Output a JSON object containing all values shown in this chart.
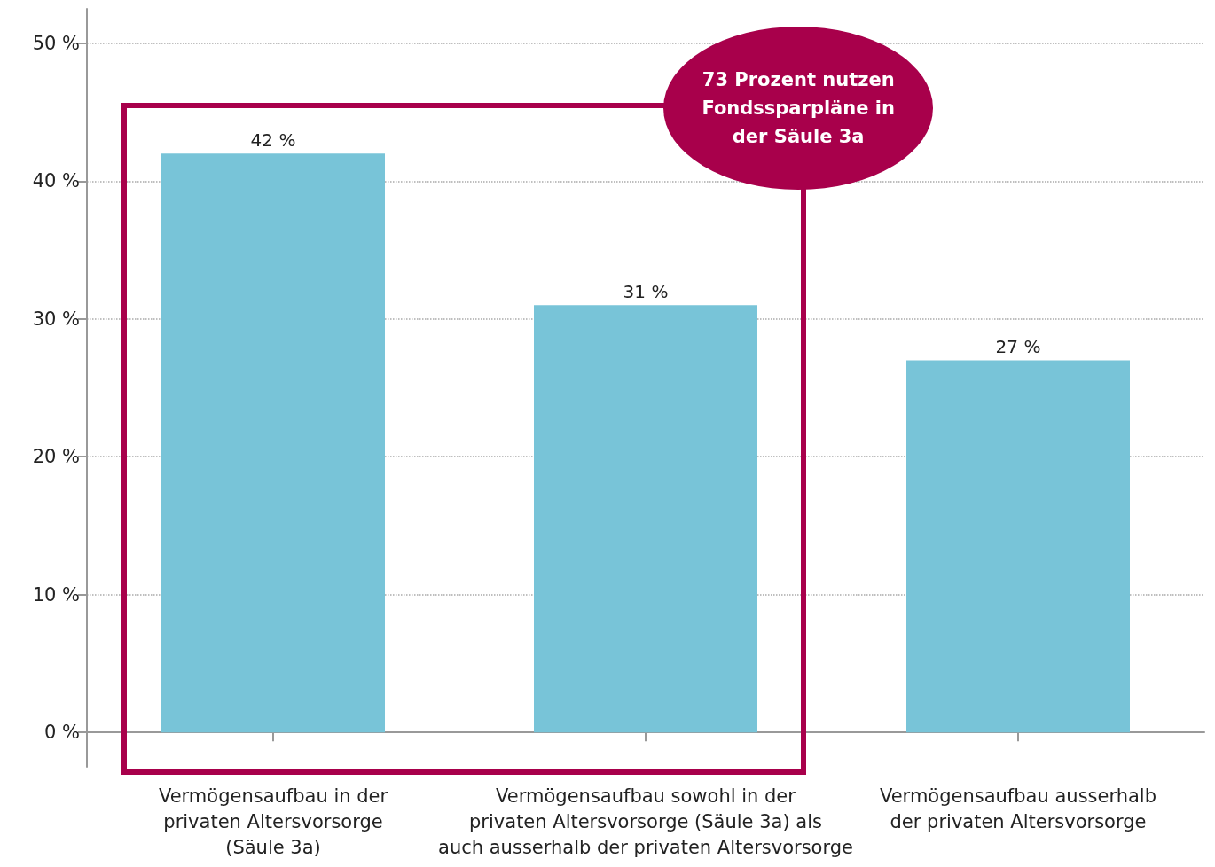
{
  "chart_data": {
    "type": "bar",
    "categories": [
      "Vermögensaufbau in der\nprivaten Altersvorsorge\n(Säule 3a)",
      "Vermögensaufbau sowohl in der\nprivaten Altersvorsorge (Säule 3a) als\nauch ausserhalb der privaten Altersvorsorge",
      "Vermögensaufbau ausserhalb\nder privaten Altersvorsorge"
    ],
    "values": [
      42,
      31,
      27
    ],
    "value_labels": [
      "42 %",
      "31 %",
      "27 %"
    ],
    "color": "#78c4d8",
    "ylim": [
      -2.5,
      52.5
    ],
    "yticks": [
      {
        "value": 0,
        "label": "0 %"
      },
      {
        "value": 10,
        "label": "10 %"
      },
      {
        "value": 20,
        "label": "20 %"
      },
      {
        "value": 30,
        "label": "30 %"
      },
      {
        "value": 40,
        "label": "40 %"
      },
      {
        "value": 50,
        "label": "50 %"
      }
    ],
    "grid": "y",
    "annotations": [
      "73 Prozent nutzen\nFondssparpläne in\nder Säule 3a"
    ]
  }
}
